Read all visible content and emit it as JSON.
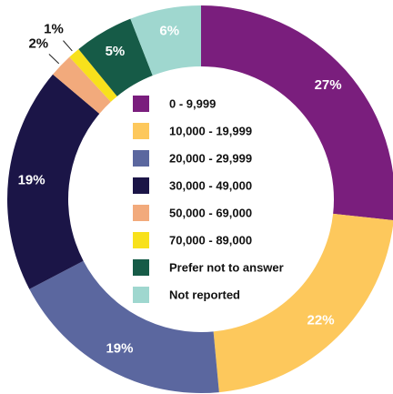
{
  "chart_data": {
    "type": "pie",
    "donut": true,
    "categories": [
      "0 - 9,999",
      "10,000 - 19,999",
      "20,000 - 29,999",
      "30,000 - 49,000",
      "50,000 - 69,000",
      "70,000 - 89,000",
      "Prefer not to answer",
      "Not reported"
    ],
    "values": [
      27,
      22,
      19,
      19,
      2,
      1,
      5,
      6
    ],
    "value_labels": [
      "27%",
      "22%",
      "19%",
      "19%",
      "2%",
      "1%",
      "5%",
      "6%"
    ],
    "colors": [
      "#7a1e7d",
      "#fdc85c",
      "#5b679f",
      "#1b1547",
      "#f2aa7c",
      "#f8e11c",
      "#165b47",
      "#9fd7cf"
    ],
    "legend": "center"
  }
}
